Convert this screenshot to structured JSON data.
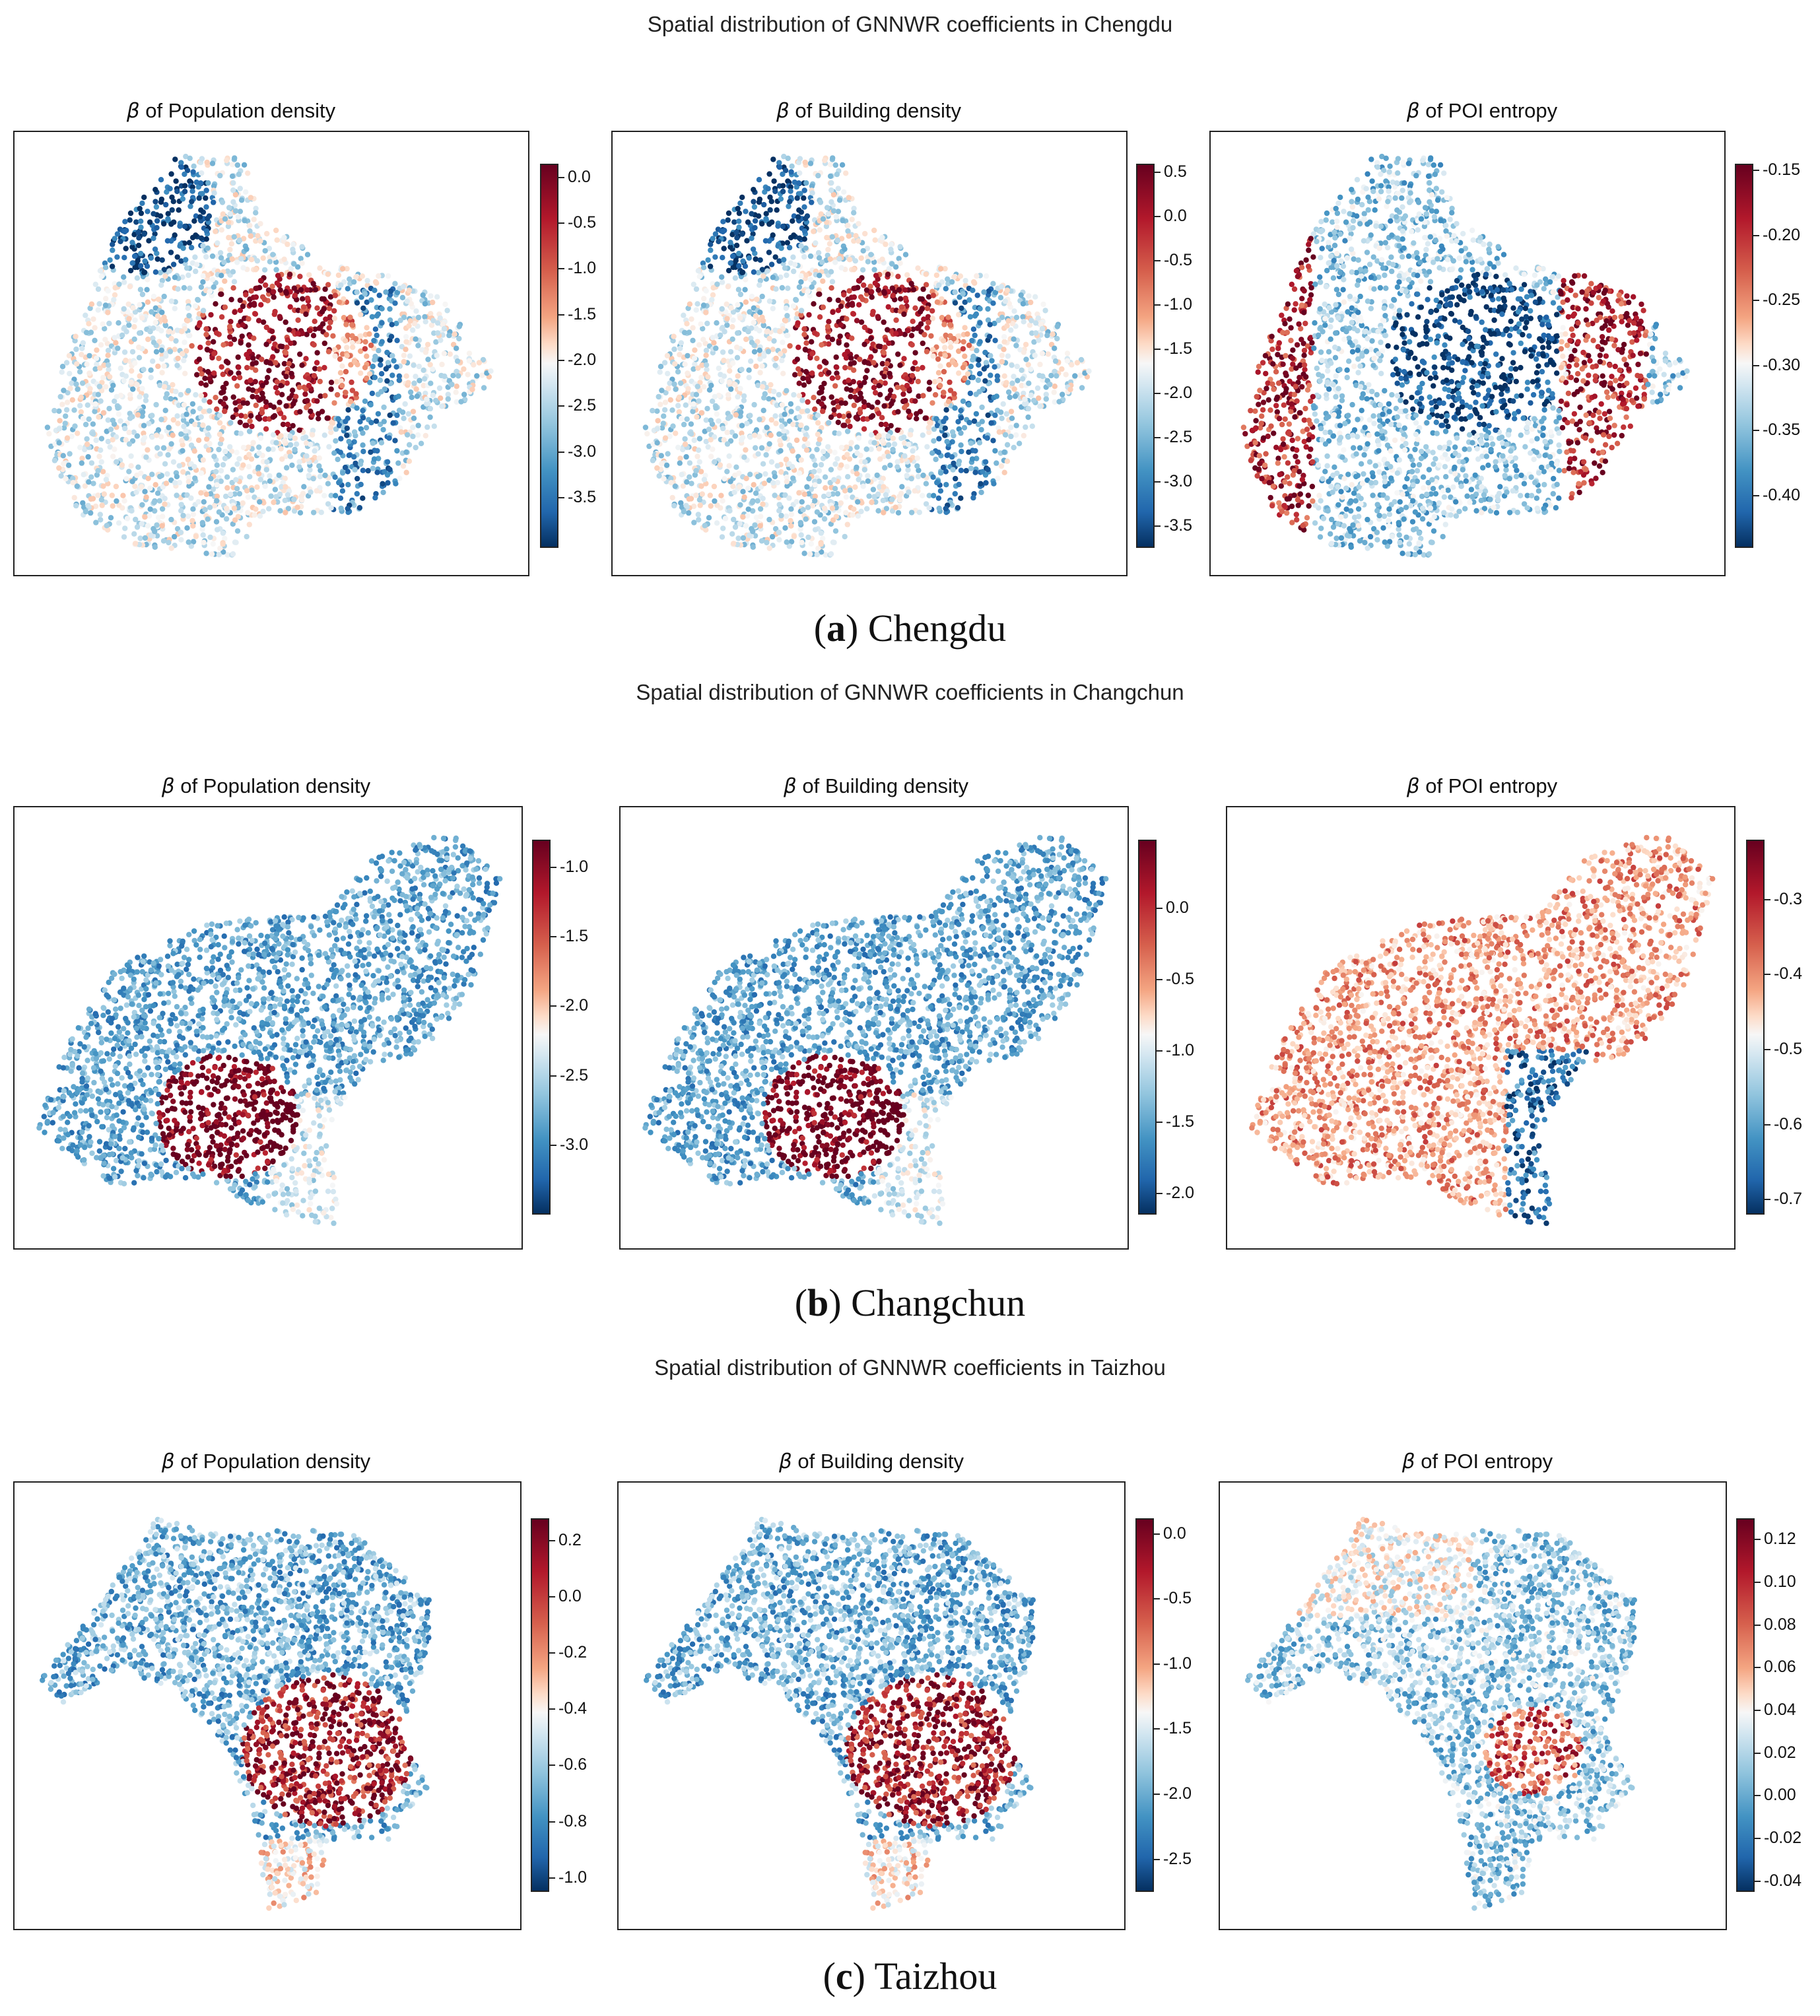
{
  "figure": {
    "sections": [
      {
        "title": "Spatial distribution of GNNWR coefficients in Chengdu",
        "caption_letter": "a",
        "caption_city": "Chengdu",
        "panels": [
          {
            "title_beta": "β",
            "title_rest": " of Population density",
            "colorbar": {
              "range": [
                -4.05,
                0.15
              ],
              "ticks": [
                "0.0",
                "-0.5",
                "-1.0",
                "-1.5",
                "-2.0",
                "-2.5",
                "-3.0",
                "-3.5"
              ],
              "values": [
                0.0,
                -0.5,
                -1.0,
                -1.5,
                -2.0,
                -2.5,
                -3.0,
                -3.5
              ]
            }
          },
          {
            "title_beta": "β",
            "title_rest": " of Building density",
            "colorbar": {
              "range": [
                -3.75,
                0.6
              ],
              "ticks": [
                "0.5",
                "0.0",
                "-0.5",
                "-1.0",
                "-1.5",
                "-2.0",
                "-2.5",
                "-3.0",
                "-3.5"
              ],
              "values": [
                0.5,
                0.0,
                -0.5,
                -1.0,
                -1.5,
                -2.0,
                -2.5,
                -3.0,
                -3.5
              ]
            }
          },
          {
            "title_beta": "β",
            "title_rest": " of POI entropy",
            "colorbar": {
              "range": [
                -0.44,
                -0.145
              ],
              "ticks": [
                "-0.15",
                "-0.20",
                "-0.25",
                "-0.30",
                "-0.35",
                "-0.40"
              ],
              "values": [
                -0.15,
                -0.2,
                -0.25,
                -0.3,
                -0.35,
                -0.4
              ]
            }
          }
        ]
      },
      {
        "title": "Spatial distribution of GNNWR coefficients in Changchun",
        "caption_letter": "b",
        "caption_city": "Changchun",
        "panels": [
          {
            "title_beta": "β",
            "title_rest": " of Population density",
            "colorbar": {
              "range": [
                -3.5,
                -0.8
              ],
              "ticks": [
                "-1.0",
                "-1.5",
                "-2.0",
                "-2.5",
                "-3.0"
              ],
              "values": [
                -1.0,
                -1.5,
                -2.0,
                -2.5,
                -3.0
              ]
            }
          },
          {
            "title_beta": "β",
            "title_rest": " of Building density",
            "colorbar": {
              "range": [
                -2.15,
                0.48
              ],
              "ticks": [
                "0.0",
                "-0.5",
                "-1.0",
                "-1.5",
                "-2.0"
              ],
              "values": [
                0.0,
                -0.5,
                -1.0,
                -1.5,
                -2.0
              ]
            }
          },
          {
            "title_beta": "β",
            "title_rest": " of POI entropy",
            "colorbar": {
              "range": [
                -0.72,
                -0.22
              ],
              "ticks": [
                "-0.3",
                "-0.4",
                "-0.5",
                "-0.6",
                "-0.7"
              ],
              "values": [
                -0.3,
                -0.4,
                -0.5,
                -0.6,
                -0.7
              ]
            }
          }
        ]
      },
      {
        "title": "Spatial distribution of GNNWR coefficients in Taizhou",
        "caption_letter": "c",
        "caption_city": "Taizhou",
        "panels": [
          {
            "title_beta": "β",
            "title_rest": " of Population density",
            "colorbar": {
              "range": [
                -1.05,
                0.28
              ],
              "ticks": [
                "0.2",
                "0.0",
                "-0.2",
                "-0.4",
                "-0.6",
                "-0.8",
                "-1.0"
              ],
              "values": [
                0.2,
                0.0,
                -0.2,
                -0.4,
                -0.6,
                -0.8,
                -1.0
              ]
            }
          },
          {
            "title_beta": "β",
            "title_rest": " of Building density",
            "colorbar": {
              "range": [
                -2.75,
                0.12
              ],
              "ticks": [
                "0.0",
                "-0.5",
                "-1.0",
                "-1.5",
                "-2.0",
                "-2.5"
              ],
              "values": [
                0.0,
                -0.5,
                -1.0,
                -1.5,
                -2.0,
                -2.5
              ]
            }
          },
          {
            "title_beta": "β",
            "title_rest": " of POI entropy",
            "colorbar": {
              "range": [
                -0.045,
                0.13
              ],
              "ticks": [
                "0.12",
                "0.10",
                "0.08",
                "0.06",
                "0.04",
                "0.02",
                "0.00",
                "-0.02",
                "-0.04"
              ],
              "values": [
                0.12,
                0.1,
                0.08,
                0.06,
                0.04,
                0.02,
                0.0,
                -0.02,
                -0.04
              ]
            }
          }
        ]
      }
    ]
  },
  "chart_data": [
    {
      "type": "heatmap",
      "title": "Spatial distribution of GNNWR coefficients in Chengdu",
      "subplots": [
        {
          "title": "β of Population density",
          "colorbar_range": [
            -4.05,
            0.15
          ],
          "colormap": "RdBu_r",
          "note": "high (red) cluster in city center, low (blue) on north-west edge"
        },
        {
          "title": "β of Building density",
          "colorbar_range": [
            -3.75,
            0.6
          ],
          "colormap": "RdBu_r",
          "note": "red center, blue north-west and east ridge"
        },
        {
          "title": "β of POI entropy",
          "colorbar_range": [
            -0.44,
            -0.145
          ],
          "colormap": "RdBu_r",
          "note": "blue center, red west and east ridge"
        }
      ]
    },
    {
      "type": "heatmap",
      "title": "Spatial distribution of GNNWR coefficients in Changchun",
      "subplots": [
        {
          "title": "β of Population density",
          "colorbar_range": [
            -3.5,
            -0.8
          ],
          "colormap": "RdBu_r",
          "note": "red core in south-center, blue elsewhere"
        },
        {
          "title": "β of Building density",
          "colorbar_range": [
            -2.15,
            0.48
          ],
          "colormap": "RdBu_r",
          "note": "red core, blue elsewhere"
        },
        {
          "title": "β of POI entropy",
          "colorbar_range": [
            -0.72,
            -0.22
          ],
          "colormap": "RdBu_r",
          "note": "mostly red, blue corridor south-east"
        }
      ]
    },
    {
      "type": "heatmap",
      "title": "Spatial distribution of GNNWR coefficients in Taizhou",
      "subplots": [
        {
          "title": "β of Population density",
          "colorbar_range": [
            -1.05,
            0.28
          ],
          "colormap": "RdBu_r",
          "note": "red in south-east lobe, blue north-west"
        },
        {
          "title": "β of Building density",
          "colorbar_range": [
            -2.75,
            0.12
          ],
          "colormap": "RdBu_r",
          "note": "red in south-east lobe, blue north-west"
        },
        {
          "title": "β of POI entropy",
          "colorbar_range": [
            -0.045,
            0.13
          ],
          "colormap": "RdBu_r",
          "note": "mixed, red pockets north and south-east"
        }
      ]
    }
  ]
}
